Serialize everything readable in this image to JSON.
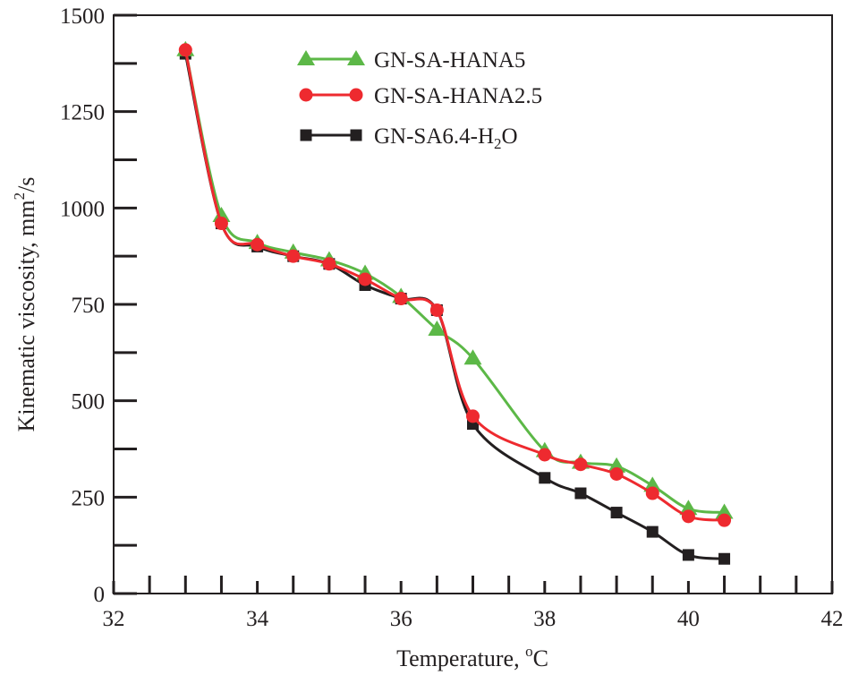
{
  "chart_data": {
    "type": "line",
    "title": "",
    "xlabel": "Temperature, ",
    "xlabel_unit": "oC",
    "ylabel": "Kinematic viscosity, mm",
    "ylabel_unit": "2/s",
    "xlim": [
      32,
      42
    ],
    "ylim": [
      0,
      1500
    ],
    "x_ticks": [
      32,
      34,
      36,
      38,
      40,
      42
    ],
    "y_ticks": [
      0,
      250,
      500,
      750,
      1000,
      1250,
      1500
    ],
    "grid": false,
    "legend_position": "top-center",
    "series": [
      {
        "name": "GN-SA-HANA5",
        "marker": "triangle",
        "color": "#5cb847",
        "x": [
          33,
          33.5,
          34,
          34.5,
          35,
          35.5,
          36,
          36.5,
          37,
          38,
          38.5,
          39,
          39.5,
          40,
          40.5
        ],
        "y": [
          1410,
          980,
          910,
          885,
          865,
          830,
          770,
          685,
          610,
          370,
          340,
          330,
          280,
          220,
          210
        ]
      },
      {
        "name": "GN-SA-HANA2.5",
        "marker": "circle",
        "color": "#ee2a2f",
        "x": [
          33,
          33.5,
          34,
          34.5,
          35,
          35.5,
          36,
          36.5,
          37,
          38,
          38.5,
          39,
          39.5,
          40,
          40.5
        ],
        "y": [
          1410,
          960,
          905,
          875,
          855,
          815,
          765,
          735,
          460,
          360,
          335,
          310,
          260,
          200,
          190
        ]
      },
      {
        "name_main": "GN-SA6.4-H",
        "name_sub": "2",
        "name_end": "O",
        "marker": "square",
        "color": "#231f20",
        "x": [
          33,
          33.5,
          34,
          34.5,
          35,
          35.5,
          36,
          36.5,
          37,
          38,
          38.5,
          39,
          39.5,
          40,
          40.5
        ],
        "y": [
          1400,
          960,
          900,
          875,
          855,
          800,
          765,
          735,
          440,
          300,
          260,
          210,
          160,
          100,
          90
        ]
      }
    ]
  }
}
